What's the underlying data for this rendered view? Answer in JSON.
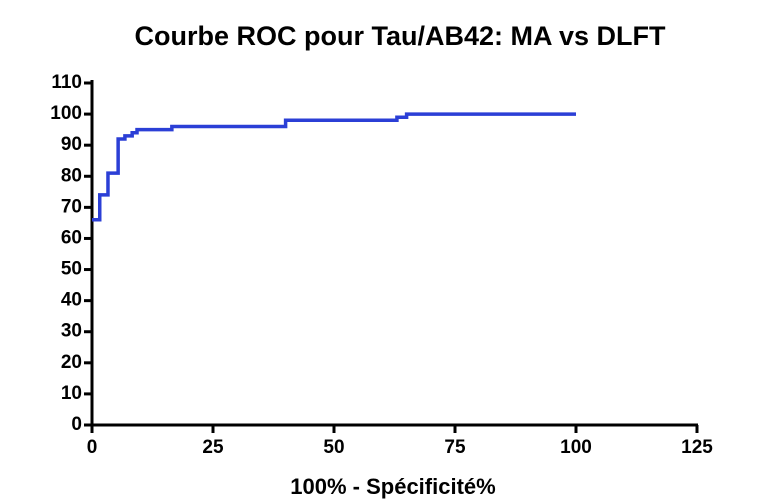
{
  "chart_data": {
    "type": "line",
    "title": "Courbe ROC pour Tau/AB42: MA vs DLFT",
    "x_label": "100% - Spécificité%",
    "x": [
      0,
      1.6,
      1.6,
      3.3,
      3.3,
      5.4,
      5.4,
      6.8,
      6.8,
      8.3,
      8.3,
      9.3,
      9.3,
      16.5,
      16.5,
      40,
      40,
      63,
      63,
      65,
      65,
      100
    ],
    "values": [
      66,
      66,
      74,
      74,
      81,
      81,
      92,
      92,
      93,
      93,
      94,
      94,
      95,
      95,
      96,
      96,
      98,
      98,
      99,
      99,
      100,
      100
    ],
    "color": "#2b3fd6",
    "xlim": [
      0,
      125
    ],
    "xticks": [
      0,
      25,
      50,
      75,
      100,
      125
    ],
    "ylim": [
      0,
      110
    ],
    "yticks": [
      0,
      10,
      20,
      30,
      40,
      50,
      60,
      70,
      80,
      90,
      100,
      110
    ],
    "grid": false
  }
}
